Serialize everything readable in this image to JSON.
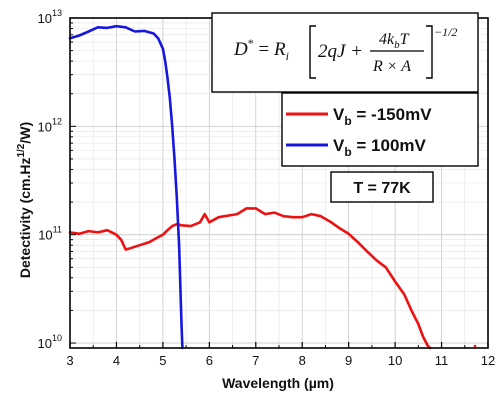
{
  "chart_data": {
    "type": "line",
    "xlabel": "Wavelength (µm)",
    "ylabel_main": "Detectivity (cm.Hz",
    "ylabel_sup": "1/2",
    "ylabel_tail": "/W)",
    "xlim": [
      3,
      12
    ],
    "ylim": [
      9000000000.0,
      10000000000000.0
    ],
    "y_scale": "log",
    "grid": true,
    "x_ticks": [
      "3",
      "4",
      "5",
      "6",
      "7",
      "8",
      "9",
      "10",
      "11",
      "12"
    ],
    "y_ticks": [
      {
        "base": "10",
        "exp": "10",
        "value": 10000000000.0
      },
      {
        "base": "10",
        "exp": "11",
        "value": 100000000000.0
      },
      {
        "base": "10",
        "exp": "12",
        "value": 1000000000000.0
      },
      {
        "base": "10",
        "exp": "13",
        "value": 10000000000000.0
      }
    ],
    "series": [
      {
        "name_main": "V",
        "name_sub": "b",
        "name_tail": " = -150mV",
        "color": "#ee1111",
        "x": [
          3.0,
          3.2,
          3.4,
          3.6,
          3.8,
          4.0,
          4.1,
          4.2,
          4.3,
          4.5,
          4.7,
          4.9,
          5.0,
          5.1,
          5.2,
          5.3,
          5.4,
          5.6,
          5.8,
          5.9,
          6.0,
          6.2,
          6.4,
          6.6,
          6.8,
          7.0,
          7.2,
          7.4,
          7.6,
          7.8,
          8.0,
          8.2,
          8.4,
          8.6,
          8.8,
          9.0,
          9.2,
          9.4,
          9.6,
          9.8,
          10.0,
          10.2,
          10.35,
          10.5,
          10.6,
          10.7,
          10.75
        ],
        "y": [
          105000000000.0,
          102000000000.0,
          108000000000.0,
          105000000000.0,
          110000000000.0,
          100000000000.0,
          90000000000.0,
          73000000000.0,
          75000000000.0,
          80000000000.0,
          85000000000.0,
          95000000000.0,
          100000000000.0,
          110000000000.0,
          120000000000.0,
          125000000000.0,
          122000000000.0,
          120000000000.0,
          130000000000.0,
          155000000000.0,
          130000000000.0,
          145000000000.0,
          150000000000.0,
          155000000000.0,
          175000000000.0,
          175000000000.0,
          155000000000.0,
          160000000000.0,
          148000000000.0,
          145000000000.0,
          145000000000.0,
          155000000000.0,
          148000000000.0,
          132000000000.0,
          115000000000.0,
          102000000000.0,
          85000000000.0,
          70000000000.0,
          58000000000.0,
          50000000000.0,
          37000000000.0,
          28000000000.0,
          20000000000.0,
          15000000000.0,
          11500000000.0,
          9500000000.0,
          9000000000.0
        ]
      },
      {
        "name_main": "V",
        "name_sub": "b",
        "name_tail": " = 100mV",
        "color": "#1717e0",
        "x": [
          3.0,
          3.2,
          3.4,
          3.6,
          3.8,
          4.0,
          4.2,
          4.4,
          4.6,
          4.8,
          4.9,
          5.0,
          5.05,
          5.1,
          5.15,
          5.2,
          5.25,
          5.3,
          5.35,
          5.38,
          5.4,
          5.42
        ],
        "y": [
          6500000000000.0,
          6900000000000.0,
          7500000000000.0,
          8200000000000.0,
          8100000000000.0,
          8400000000000.0,
          8200000000000.0,
          7500000000000.0,
          7600000000000.0,
          7200000000000.0,
          6500000000000.0,
          5200000000000.0,
          4000000000000.0,
          2800000000000.0,
          1800000000000.0,
          1000000000000.0,
          500000000000.0,
          220000000000.0,
          80000000000.0,
          30000000000.0,
          15000000000.0,
          9000000000.0
        ]
      }
    ],
    "isolated_points": [
      {
        "x": 11.72,
        "y1": 9200000000.0,
        "y2": 9600000000.0,
        "color": "#ee1111"
      }
    ],
    "annotations": {
      "equation": {
        "lhs": "D",
        "lhs_sup": "*",
        "equals": " = ",
        "r": "R",
        "r_sub": "i",
        "inner_left": "2qJ + ",
        "num": "4k",
        "num_sub": "b",
        "num_tail": "T",
        "den": "R × A",
        "power": "−1/2"
      },
      "temperature": "T = 77K"
    }
  }
}
